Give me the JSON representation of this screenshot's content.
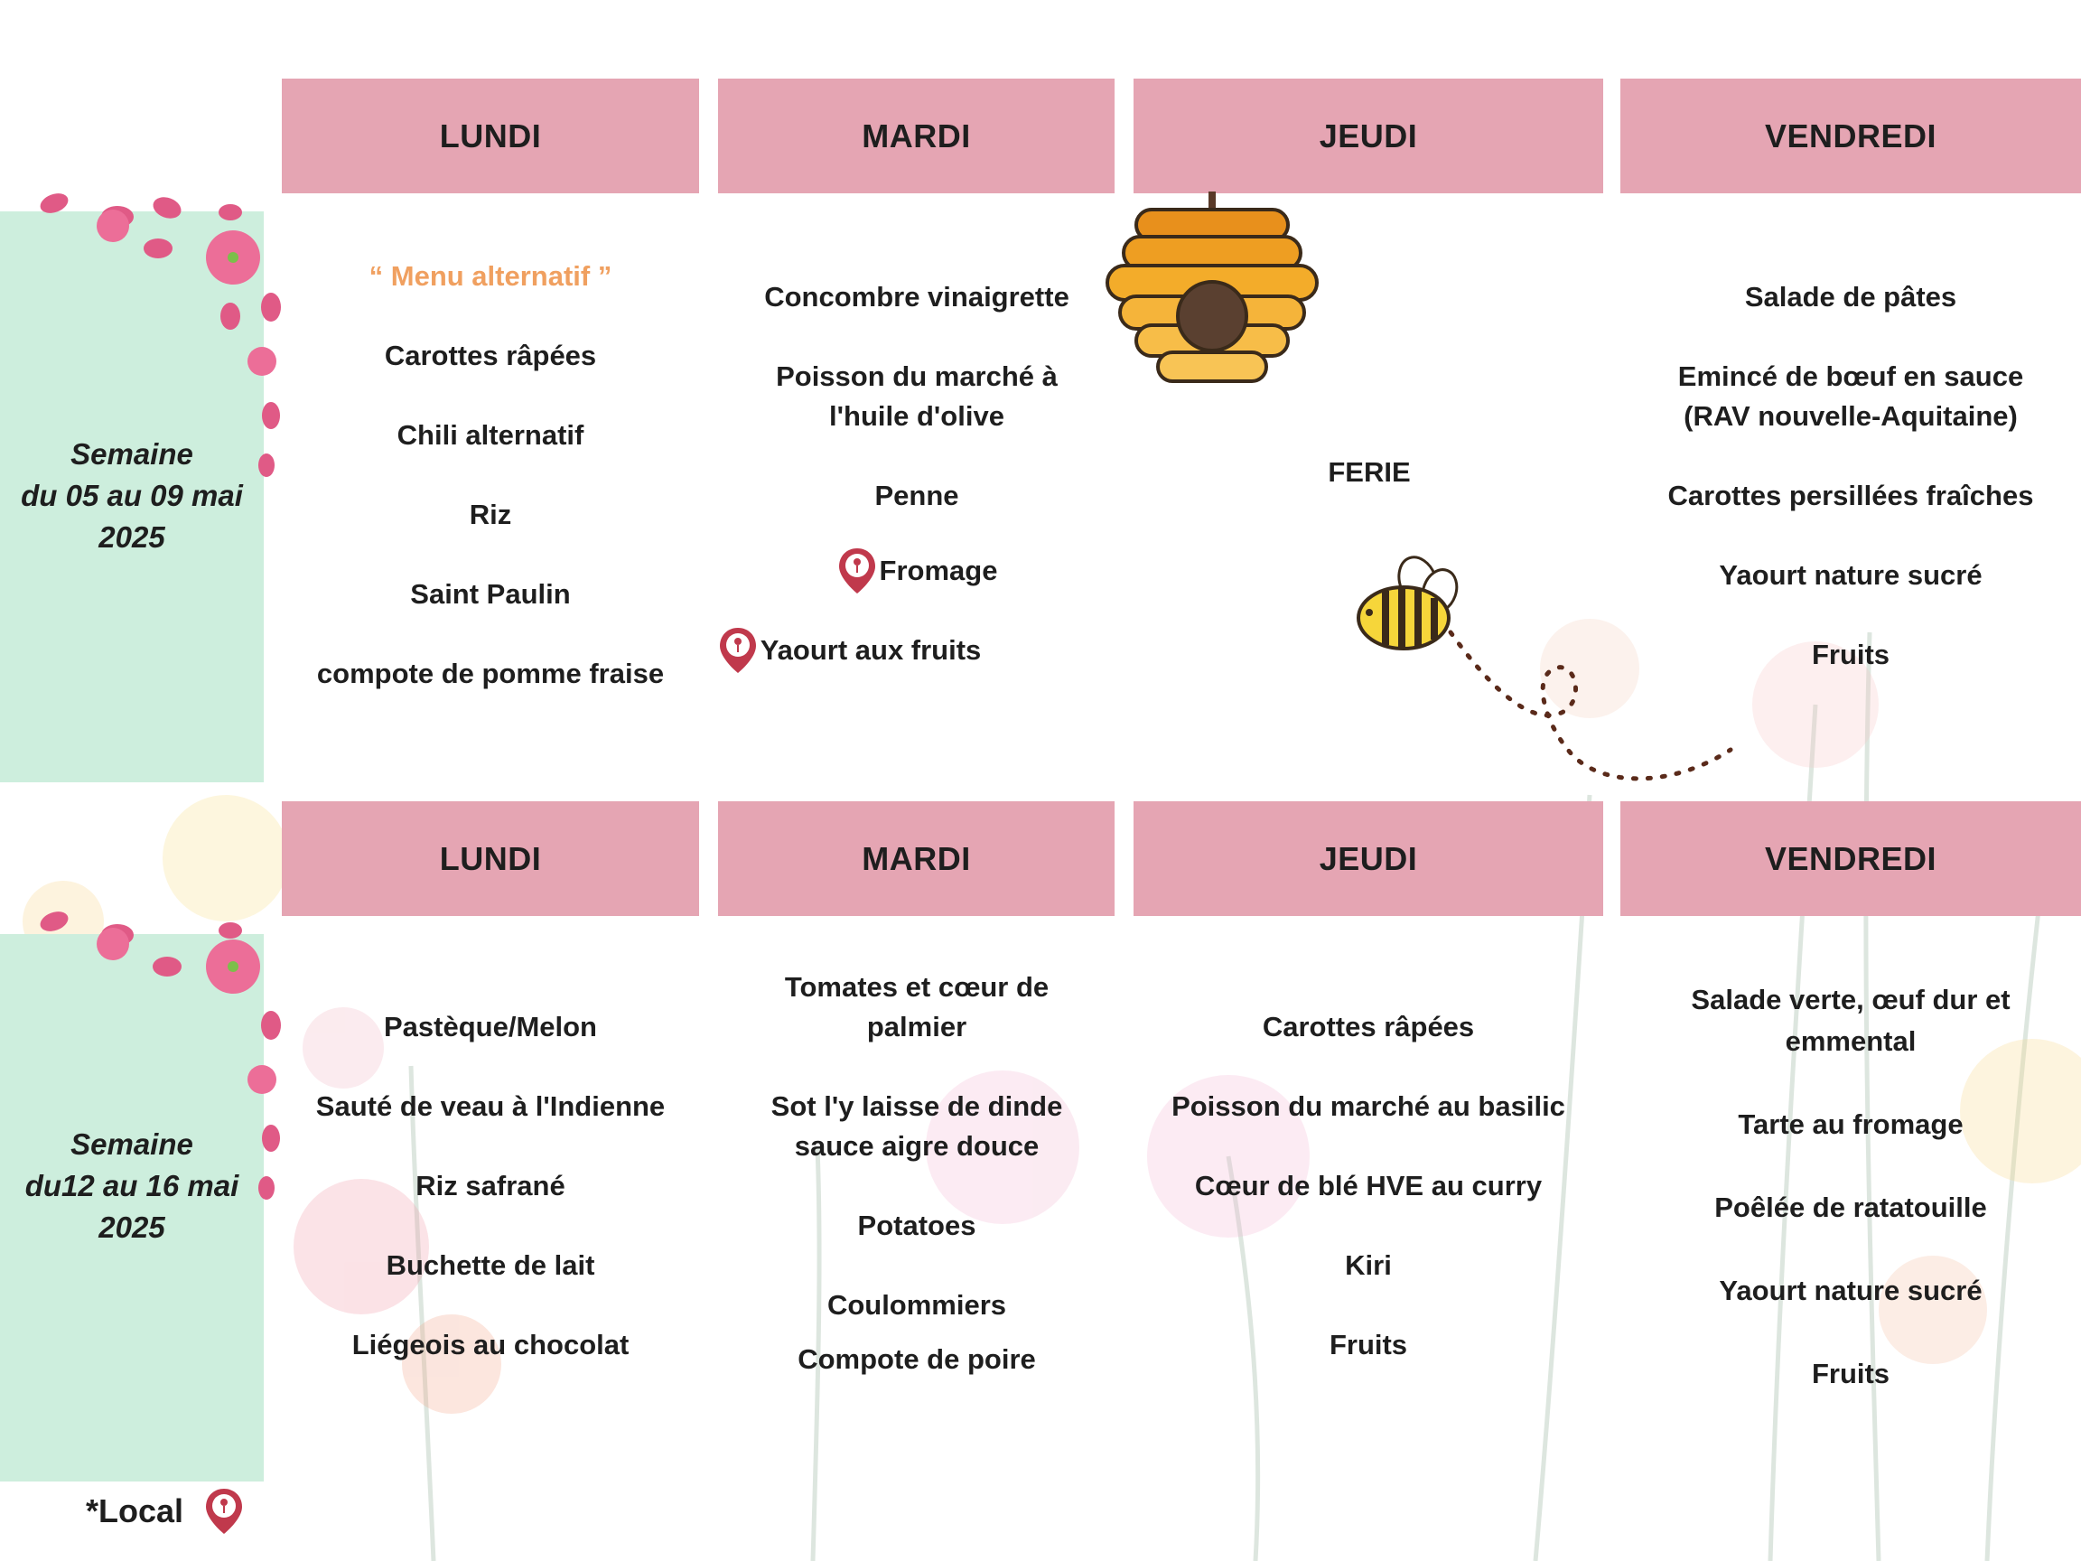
{
  "colors": {
    "header_bg": "#e5a5b3",
    "side_panel_bg": "#cdeedd",
    "alt_menu_text": "#f0a060",
    "local_pin": "#c0394c"
  },
  "weeks": [
    {
      "label_line1": "Semaine",
      "label_line2": "du 05 au 09 mai",
      "label_line3": "2025",
      "days": [
        {
          "name": "LUNDI",
          "items": [
            "“ Menu alternatif ”",
            "Carottes râpées",
            "Chili alternatif",
            "Riz",
            "Saint Paulin",
            "compote de pomme fraise"
          ]
        },
        {
          "name": "MARDI",
          "items": [
            "Concombre vinaigrette",
            "Poisson du marché à l'huile d'olive",
            "Penne",
            "Fromage",
            "Yaourt aux fruits"
          ]
        },
        {
          "name": "JEUDI",
          "note": "FERIE"
        },
        {
          "name": "VENDREDI",
          "items": [
            "Salade de pâtes",
            "Emincé de bœuf en sauce (RAV nouvelle-Aquitaine)",
            "Carottes persillées fraîches",
            "Yaourt nature sucré",
            "Fruits"
          ]
        }
      ]
    },
    {
      "label_line1": "Semaine",
      "label_line2": "du12 au 16 mai",
      "label_line3": "2025",
      "days": [
        {
          "name": "LUNDI",
          "items": [
            "Pastèque/Melon",
            "Sauté de veau à l'Indienne",
            "Riz safrané",
            "Buchette de lait",
            "Liégeois au chocolat"
          ]
        },
        {
          "name": "MARDI",
          "items": [
            "Tomates et cœur de palmier",
            "Sot l'y laisse de dinde sauce aigre douce",
            "Potatoes",
            "Coulommiers",
            "Compote de poire"
          ]
        },
        {
          "name": "JEUDI",
          "items": [
            "Carottes râpées",
            "Poisson du marché au basilic",
            "Cœur de blé HVE au curry",
            "Kiri",
            "Fruits"
          ]
        },
        {
          "name": "VENDREDI",
          "items": [
            "Salade verte, œuf dur et emmental",
            "Tarte au fromage",
            "Poêlée de ratatouille",
            "Yaourt nature sucré",
            "Fruits"
          ]
        }
      ]
    }
  ],
  "legend": {
    "local_label": "*Local",
    "icon": "location-pin-icon"
  }
}
